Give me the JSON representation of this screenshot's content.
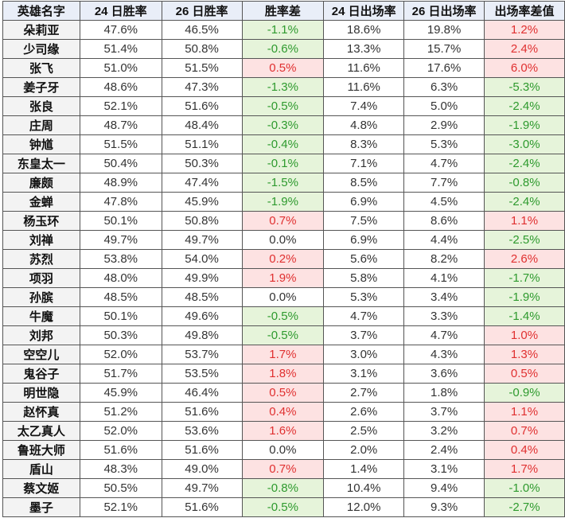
{
  "headers": [
    "英雄名字",
    "24 日胜率",
    "26 日胜率",
    "胜率差",
    "24 日出场率",
    "26 日出场率",
    "出场率差值"
  ],
  "rows": [
    [
      "朵莉亚",
      "47.6%",
      "46.5%",
      "-1.1%",
      "18.6%",
      "19.8%",
      "1.2%"
    ],
    [
      "少司缘",
      "51.4%",
      "50.8%",
      "-0.6%",
      "13.3%",
      "15.7%",
      "2.4%"
    ],
    [
      "张飞",
      "51.0%",
      "51.5%",
      "0.5%",
      "11.6%",
      "17.6%",
      "6.0%"
    ],
    [
      "姜子牙",
      "48.6%",
      "47.3%",
      "-1.3%",
      "11.6%",
      "6.3%",
      "-5.3%"
    ],
    [
      "张良",
      "52.1%",
      "51.6%",
      "-0.5%",
      "7.4%",
      "5.0%",
      "-2.4%"
    ],
    [
      "庄周",
      "48.7%",
      "48.4%",
      "-0.3%",
      "4.8%",
      "2.9%",
      "-1.9%"
    ],
    [
      "钟馗",
      "51.5%",
      "51.1%",
      "-0.4%",
      "8.3%",
      "5.3%",
      "-3.0%"
    ],
    [
      "东皇太一",
      "50.4%",
      "50.3%",
      "-0.1%",
      "7.1%",
      "4.7%",
      "-2.4%"
    ],
    [
      "廉颇",
      "48.9%",
      "47.4%",
      "-1.5%",
      "8.5%",
      "7.7%",
      "-0.8%"
    ],
    [
      "金蝉",
      "47.8%",
      "45.9%",
      "-1.9%",
      "6.9%",
      "4.5%",
      "-2.4%"
    ],
    [
      "杨玉环",
      "50.1%",
      "50.8%",
      "0.7%",
      "7.5%",
      "8.6%",
      "1.1%"
    ],
    [
      "刘禅",
      "49.7%",
      "49.7%",
      "0.0%",
      "6.9%",
      "4.4%",
      "-2.5%"
    ],
    [
      "苏烈",
      "53.8%",
      "54.0%",
      "0.2%",
      "5.6%",
      "8.2%",
      "2.6%"
    ],
    [
      "项羽",
      "48.0%",
      "49.9%",
      "1.9%",
      "5.8%",
      "4.1%",
      "-1.7%"
    ],
    [
      "孙膑",
      "48.5%",
      "48.5%",
      "0.0%",
      "5.3%",
      "3.4%",
      "-1.9%"
    ],
    [
      "牛魔",
      "50.1%",
      "49.6%",
      "-0.5%",
      "4.7%",
      "3.3%",
      "-1.4%"
    ],
    [
      "刘邦",
      "50.3%",
      "49.8%",
      "-0.5%",
      "3.7%",
      "4.7%",
      "1.0%"
    ],
    [
      "空空儿",
      "52.0%",
      "53.7%",
      "1.7%",
      "3.0%",
      "4.3%",
      "1.3%"
    ],
    [
      "鬼谷子",
      "51.7%",
      "53.5%",
      "1.8%",
      "3.1%",
      "3.6%",
      "0.5%"
    ],
    [
      "明世隐",
      "45.9%",
      "46.4%",
      "0.5%",
      "2.7%",
      "1.8%",
      "-0.9%"
    ],
    [
      "赵怀真",
      "51.2%",
      "51.6%",
      "0.4%",
      "2.6%",
      "3.7%",
      "1.1%"
    ],
    [
      "太乙真人",
      "52.0%",
      "53.6%",
      "1.6%",
      "2.5%",
      "3.2%",
      "0.7%"
    ],
    [
      "鲁班大师",
      "51.6%",
      "51.6%",
      "0.0%",
      "2.0%",
      "2.4%",
      "0.4%"
    ],
    [
      "盾山",
      "48.3%",
      "49.0%",
      "0.7%",
      "1.4%",
      "3.1%",
      "1.7%"
    ],
    [
      "蔡文姬",
      "50.5%",
      "49.7%",
      "-0.8%",
      "10.4%",
      "9.4%",
      "-1.0%"
    ],
    [
      "墨子",
      "52.1%",
      "51.6%",
      "-0.5%",
      "12.0%",
      "9.3%",
      "-2.7%"
    ]
  ],
  "colors": {
    "positive_text": "#e03030",
    "positive_fill": "#fde2e2",
    "negative_text": "#2e9a2e",
    "negative_fill": "#e6f4da"
  }
}
